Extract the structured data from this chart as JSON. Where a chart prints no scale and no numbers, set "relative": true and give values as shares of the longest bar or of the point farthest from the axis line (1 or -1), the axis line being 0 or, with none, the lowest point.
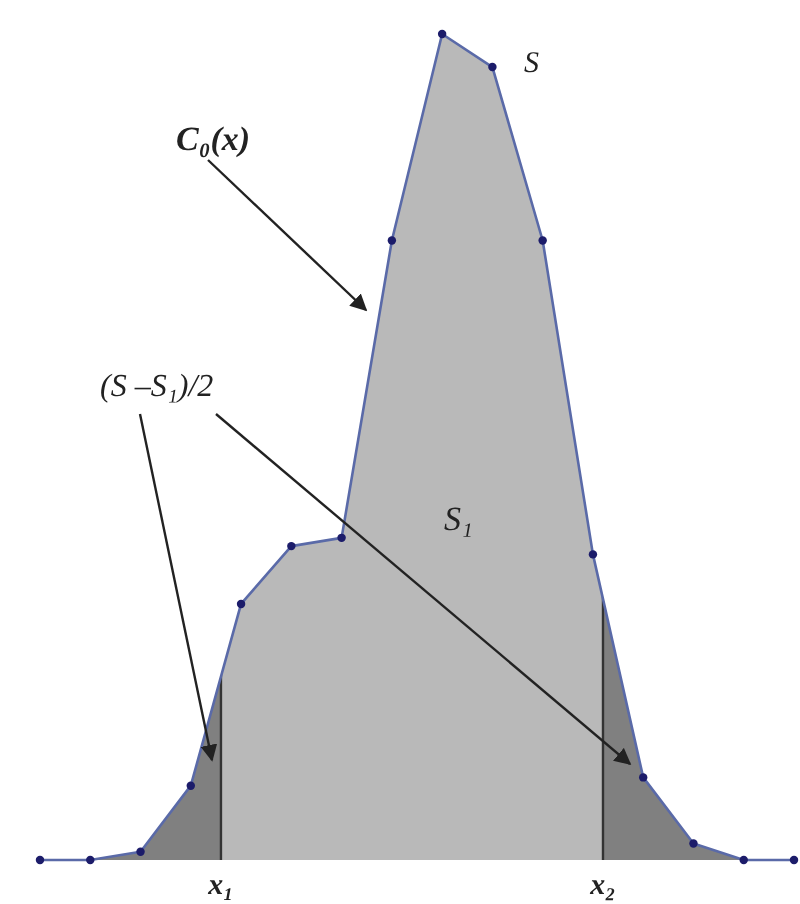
{
  "chart_data": {
    "type": "area",
    "relative": true,
    "tick_labels": false,
    "marker": "circle",
    "categories": [
      null,
      null,
      null,
      null,
      null,
      null,
      null,
      null,
      null,
      null,
      null,
      null,
      null,
      null,
      null,
      null
    ],
    "series": [
      {
        "color": "#5a6aa8",
        "values": [
          0.0,
          0.0,
          0.01,
          0.09,
          0.31,
          0.38,
          0.39,
          0.75,
          1.0,
          0.96,
          0.75,
          0.37,
          0.1,
          0.02,
          0.0,
          0.0
        ]
      }
    ],
    "annotations": [
      "S",
      "C₀(x)",
      "(S –S₁)/2",
      "S₁",
      "x₁",
      "x₂"
    ]
  }
}
